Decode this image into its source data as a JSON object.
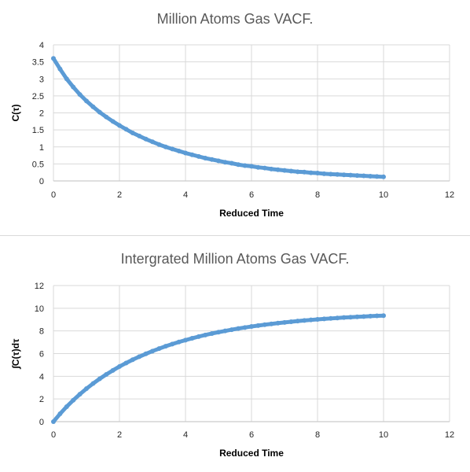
{
  "chart_data": [
    {
      "type": "scatter",
      "title": "Million Atoms Gas VACF.",
      "xlabel": "Reduced Time",
      "ylabel": "C(τ)",
      "xlim": [
        0,
        12
      ],
      "ylim": [
        0,
        4
      ],
      "xticks": [
        0,
        2,
        4,
        6,
        8,
        10,
        12
      ],
      "yticks": [
        0,
        0.5,
        1,
        1.5,
        2,
        2.5,
        3,
        3.5,
        4
      ],
      "grid": true,
      "legend": "none",
      "color": "#5b9bd5",
      "series": [
        {
          "x": [
            0,
            0.2,
            0.4,
            0.6,
            0.8,
            1.0,
            1.2,
            1.4,
            1.6,
            1.8,
            2.0,
            2.2,
            2.4,
            2.6,
            2.8,
            3.0,
            3.2,
            3.4,
            3.6,
            3.8,
            4.0,
            4.2,
            4.4,
            4.6,
            4.8,
            5.0,
            5.2,
            5.4,
            5.6,
            5.8,
            6.0,
            6.2,
            6.4,
            6.6,
            6.8,
            7.0,
            7.2,
            7.4,
            7.6,
            7.8,
            8.0,
            8.2,
            8.4,
            8.6,
            8.8,
            9.0,
            9.2,
            9.4,
            9.6,
            9.8,
            10.0
          ],
          "y": [
            3.6,
            3.29,
            3.0,
            2.76,
            2.54,
            2.35,
            2.18,
            2.02,
            1.88,
            1.75,
            1.63,
            1.52,
            1.41,
            1.32,
            1.23,
            1.15,
            1.07,
            1.0,
            0.94,
            0.88,
            0.82,
            0.77,
            0.72,
            0.67,
            0.63,
            0.59,
            0.55,
            0.52,
            0.48,
            0.45,
            0.43,
            0.4,
            0.38,
            0.35,
            0.33,
            0.31,
            0.29,
            0.27,
            0.26,
            0.24,
            0.23,
            0.21,
            0.2,
            0.19,
            0.18,
            0.17,
            0.16,
            0.15,
            0.14,
            0.13,
            0.12
          ]
        }
      ]
    },
    {
      "type": "scatter",
      "title": "Intergrated Million Atoms Gas VACF.",
      "xlabel": "Reduced Time",
      "ylabel": "∫C(τ)dτ",
      "xlim": [
        0,
        12
      ],
      "ylim": [
        0,
        12
      ],
      "xticks": [
        0,
        2,
        4,
        6,
        8,
        10,
        12
      ],
      "yticks": [
        0,
        2,
        4,
        6,
        8,
        10,
        12
      ],
      "grid": true,
      "legend": "none",
      "color": "#5b9bd5",
      "series": [
        {
          "x": [
            0,
            0.2,
            0.4,
            0.6,
            0.8,
            1.0,
            1.2,
            1.4,
            1.6,
            1.8,
            2.0,
            2.2,
            2.4,
            2.6,
            2.8,
            3.0,
            3.2,
            3.4,
            3.6,
            3.8,
            4.0,
            4.2,
            4.4,
            4.6,
            4.8,
            5.0,
            5.2,
            5.4,
            5.6,
            5.8,
            6.0,
            6.2,
            6.4,
            6.6,
            6.8,
            7.0,
            7.2,
            7.4,
            7.6,
            7.8,
            8.0,
            8.2,
            8.4,
            8.6,
            8.8,
            9.0,
            9.2,
            9.4,
            9.6,
            9.8,
            10.0
          ],
          "y": [
            0,
            0.69,
            1.32,
            1.89,
            2.42,
            2.91,
            3.36,
            3.78,
            4.16,
            4.52,
            4.86,
            5.17,
            5.46,
            5.73,
            5.98,
            6.22,
            6.44,
            6.65,
            6.84,
            7.02,
            7.19,
            7.35,
            7.5,
            7.64,
            7.77,
            7.89,
            8.0,
            8.11,
            8.21,
            8.3,
            8.39,
            8.47,
            8.55,
            8.62,
            8.69,
            8.75,
            8.81,
            8.87,
            8.92,
            8.97,
            9.02,
            9.06,
            9.1,
            9.14,
            9.18,
            9.21,
            9.24,
            9.27,
            9.3,
            9.33,
            9.35
          ]
        }
      ]
    }
  ]
}
